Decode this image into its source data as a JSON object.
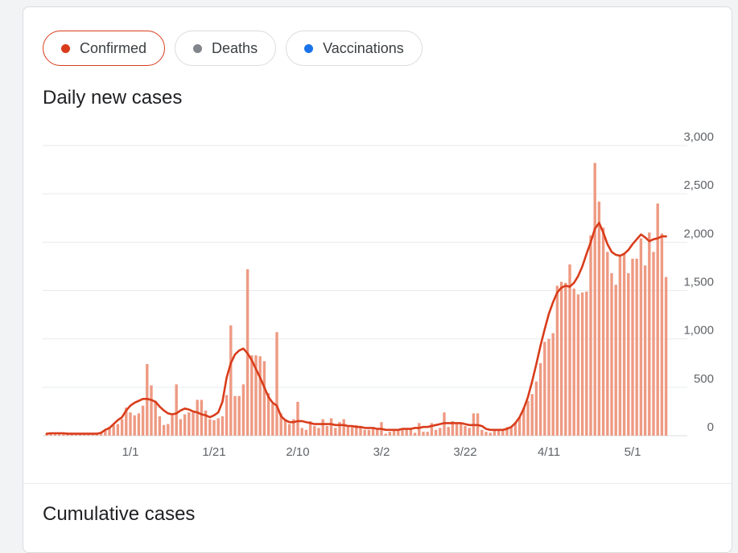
{
  "metric_chips": [
    {
      "label": "Confirmed",
      "color": "#d93c1b",
      "active": true
    },
    {
      "label": "Deaths",
      "color": "#80868b",
      "active": false
    },
    {
      "label": "Vaccinations",
      "color": "#1a73e8",
      "active": false
    }
  ],
  "sections": {
    "daily_title": "Daily new cases",
    "cumulative_title": "Cumulative cases"
  },
  "chart_data": {
    "type": "bar",
    "title": "",
    "xlabel": "",
    "ylabel": "",
    "ylim": [
      0,
      3000
    ],
    "y_ticks": [
      {
        "value": 0,
        "label": "0"
      },
      {
        "value": 500,
        "label": "500"
      },
      {
        "value": 1000,
        "label": "1,000"
      },
      {
        "value": 1500,
        "label": "1,500"
      },
      {
        "value": 2000,
        "label": "2,000"
      },
      {
        "value": 2500,
        "label": "2,500"
      },
      {
        "value": 3000,
        "label": "3,000"
      }
    ],
    "x_ticks": [
      {
        "index": 20,
        "label": "1/1"
      },
      {
        "index": 40,
        "label": "1/21"
      },
      {
        "index": 60,
        "label": "2/10"
      },
      {
        "index": 80,
        "label": "3/2"
      },
      {
        "index": 100,
        "label": "3/22"
      },
      {
        "index": 120,
        "label": "4/11"
      },
      {
        "index": 140,
        "label": "5/1"
      }
    ],
    "grid": true,
    "bar_color": "#ee9a83",
    "line_color": "#d93c1b",
    "series": [
      {
        "type": "bar",
        "values": [
          20,
          20,
          20,
          20,
          20,
          20,
          20,
          10,
          20,
          10,
          10,
          10,
          20,
          30,
          50,
          90,
          110,
          120,
          170,
          290,
          240,
          210,
          230,
          310,
          740,
          520,
          360,
          200,
          110,
          120,
          210,
          530,
          170,
          220,
          240,
          240,
          370,
          370,
          260,
          170,
          160,
          180,
          200,
          420,
          1140,
          410,
          410,
          530,
          1720,
          830,
          830,
          820,
          770,
          440,
          330,
          1070,
          230,
          170,
          120,
          170,
          350,
          80,
          60,
          150,
          100,
          80,
          170,
          100,
          180,
          80,
          140,
          170,
          110,
          100,
          110,
          100,
          60,
          60,
          80,
          60,
          140,
          20,
          40,
          60,
          60,
          60,
          60,
          80,
          30,
          130,
          40,
          40,
          130,
          60,
          80,
          240,
          90,
          150,
          130,
          130,
          100,
          80,
          230,
          230,
          60,
          40,
          30,
          60,
          50,
          60,
          90,
          90,
          140,
          190,
          290,
          360,
          430,
          560,
          750,
          970,
          1000,
          1060,
          1550,
          1590,
          1580,
          1770,
          1520,
          1460,
          1480,
          1490,
          2070,
          2820,
          2420,
          2150,
          1900,
          1680,
          1560,
          1860,
          1890,
          1680,
          1830,
          1830,
          2040,
          1760,
          2100,
          1900,
          2400,
          2090,
          1640
        ]
      },
      {
        "type": "line",
        "values": [
          20,
          25,
          25,
          25,
          25,
          20,
          20,
          20,
          20,
          20,
          20,
          20,
          20,
          30,
          60,
          80,
          120,
          160,
          190,
          260,
          310,
          340,
          360,
          380,
          380,
          370,
          350,
          300,
          260,
          230,
          220,
          230,
          260,
          280,
          270,
          250,
          240,
          220,
          210,
          190,
          210,
          240,
          350,
          600,
          750,
          840,
          880,
          900,
          850,
          780,
          690,
          600,
          500,
          400,
          340,
          310,
          200,
          160,
          140,
          140,
          150,
          150,
          140,
          130,
          120,
          120,
          120,
          120,
          120,
          110,
          110,
          110,
          100,
          100,
          90,
          90,
          80,
          80,
          80,
          70,
          70,
          60,
          60,
          60,
          60,
          70,
          70,
          70,
          80,
          80,
          90,
          90,
          100,
          110,
          120,
          130,
          130,
          130,
          130,
          130,
          120,
          110,
          110,
          110,
          100,
          70,
          60,
          60,
          60,
          60,
          70,
          90,
          130,
          190,
          280,
          400,
          560,
          740,
          930,
          1100,
          1260,
          1380,
          1480,
          1530,
          1550,
          1540,
          1580,
          1650,
          1750,
          1880,
          2000,
          2140,
          2200,
          2100,
          1980,
          1900,
          1870,
          1860,
          1880,
          1920,
          1980,
          2030,
          2080,
          2050,
          2010,
          2030,
          2040,
          2060,
          2060
        ]
      }
    ]
  }
}
